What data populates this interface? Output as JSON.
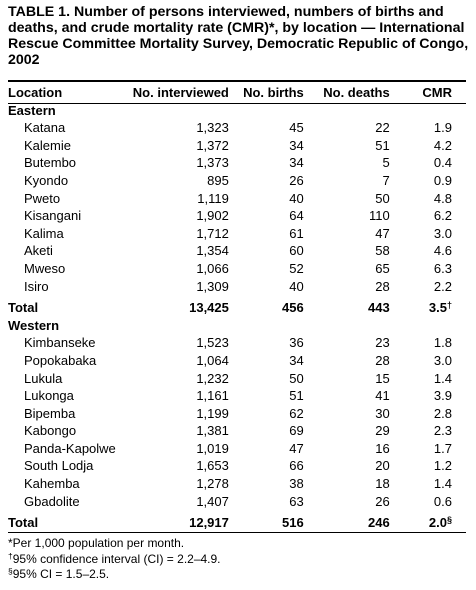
{
  "title": "TABLE 1. Number of persons interviewed, numbers of births and deaths, and crude mortality rate (CMR)*, by location — International Rescue Committee Mortality Survey, Democratic Republic of Congo, 2002",
  "columns": [
    "Location",
    "No. interviewed",
    "No. births",
    "No. deaths",
    "CMR"
  ],
  "sections": [
    {
      "name": "Eastern",
      "rows": [
        [
          "Katana",
          "1,323",
          "45",
          "22",
          "1.9"
        ],
        [
          "Kalemie",
          "1,372",
          "34",
          "51",
          "4.2"
        ],
        [
          "Butembo",
          "1,373",
          "34",
          "5",
          "0.4"
        ],
        [
          "Kyondo",
          "895",
          "26",
          "7",
          "0.9"
        ],
        [
          "Pweto",
          "1,119",
          "40",
          "50",
          "4.8"
        ],
        [
          "Kisangani",
          "1,902",
          "64",
          "110",
          "6.2"
        ],
        [
          "Kalima",
          "1,712",
          "61",
          "47",
          "3.0"
        ],
        [
          "Aketi",
          "1,354",
          "60",
          "58",
          "4.6"
        ],
        [
          "Mweso",
          "1,066",
          "52",
          "65",
          "6.3"
        ],
        [
          "Isiro",
          "1,309",
          "40",
          "28",
          "2.2"
        ]
      ],
      "total": {
        "label": "Total",
        "interviewed": "13,425",
        "births": "456",
        "deaths": "443",
        "cmr": "3.5",
        "mark": "†"
      }
    },
    {
      "name": "Western",
      "rows": [
        [
          "Kimbanseke",
          "1,523",
          "36",
          "23",
          "1.8"
        ],
        [
          "Popokabaka",
          "1,064",
          "34",
          "28",
          "3.0"
        ],
        [
          "Lukula",
          "1,232",
          "50",
          "15",
          "1.4"
        ],
        [
          "Lukonga",
          "1,161",
          "51",
          "41",
          "3.9"
        ],
        [
          "Bipemba",
          "1,199",
          "62",
          "30",
          "2.8"
        ],
        [
          "Kabongo",
          "1,381",
          "69",
          "29",
          "2.3"
        ],
        [
          "Panda-Kapolwe",
          "1,019",
          "47",
          "16",
          "1.7"
        ],
        [
          "South Lodja",
          "1,653",
          "66",
          "20",
          "1.2"
        ],
        [
          "Kahemba",
          "1,278",
          "38",
          "18",
          "1.4"
        ],
        [
          "Gbadolite",
          "1,407",
          "63",
          "26",
          "0.6"
        ]
      ],
      "total": {
        "label": "Total",
        "interviewed": "12,917",
        "births": "516",
        "deaths": "246",
        "cmr": "2.0",
        "mark": "§"
      }
    }
  ],
  "footnotes": [
    {
      "mark": "*",
      "text": "Per 1,000 population per month."
    },
    {
      "mark": "†",
      "text": "95% confidence interval (CI) = 2.2–4.9."
    },
    {
      "mark": "§",
      "text": "95% CI = 1.5–2.5."
    }
  ]
}
